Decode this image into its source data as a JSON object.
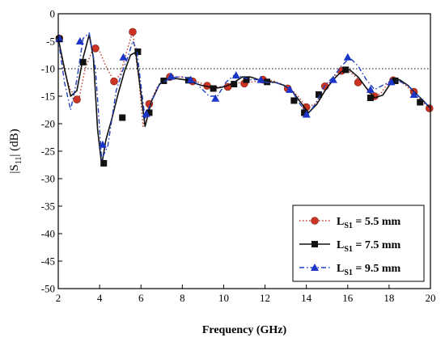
{
  "chart_data": {
    "type": "line",
    "title": "",
    "xlabel": "Frequency (GHz)",
    "ylabel_prefix": "|S",
    "ylabel_sub": "11",
    "ylabel_suffix": "| (dB)",
    "xlim": [
      2,
      20
    ],
    "ylim": [
      -50,
      0
    ],
    "xticks": [
      2,
      4,
      6,
      8,
      10,
      12,
      14,
      16,
      18,
      20
    ],
    "yticks": [
      0,
      -5,
      -10,
      -15,
      -20,
      -25,
      -30,
      -35,
      -40,
      -45,
      -50
    ],
    "reference_line": {
      "y": -10,
      "style": "dotted"
    },
    "legend_position": "bottom-right",
    "series": [
      {
        "label_main": "L",
        "label_sub": "S1",
        "label_rest": " = 5.5 mm",
        "color": "#c0392b",
        "marker_color": "#cc3322",
        "marker": "circle",
        "dash": "dot",
        "x": [
          2.0,
          2.3,
          2.6,
          3.0,
          3.3,
          3.7,
          4.0,
          4.3,
          4.7,
          5.0,
          5.3,
          5.6,
          5.9,
          6.1,
          6.4,
          6.8,
          7.2,
          7.6,
          8.0,
          8.4,
          8.8,
          9.2,
          9.6,
          10.0,
          10.4,
          10.8,
          11.2,
          11.6,
          12.0,
          12.4,
          12.8,
          13.2,
          13.6,
          14.0,
          14.4,
          14.8,
          15.2,
          15.6,
          16.0,
          16.4,
          16.8,
          17.2,
          17.6,
          18.0,
          18.4,
          18.8,
          19.2,
          19.6,
          20.0
        ],
        "y": [
          -4.5,
          -10.5,
          -14.0,
          -15.5,
          -10.0,
          -6.2,
          -6.8,
          -9.5,
          -12.3,
          -11.0,
          -7.0,
          -3.3,
          -12.0,
          -20.5,
          -16.5,
          -13.2,
          -12.0,
          -11.5,
          -11.5,
          -12.0,
          -12.5,
          -13.0,
          -13.3,
          -13.3,
          -13.0,
          -12.5,
          -12.5,
          -12.3,
          -12.0,
          -12.2,
          -12.8,
          -13.5,
          -15.0,
          -17.0,
          -16.5,
          -14.5,
          -12.0,
          -10.5,
          -10.3,
          -11.5,
          -13.0,
          -15.3,
          -14.5,
          -12.3,
          -12.0,
          -13.0,
          -14.5,
          -16.0,
          -17.2
        ],
        "markers_x": [
          2.05,
          2.9,
          3.8,
          4.7,
          5.6,
          6.4,
          7.4,
          8.5,
          9.2,
          10.2,
          11.0,
          11.9,
          13.1,
          14.0,
          14.9,
          15.7,
          16.5,
          17.3,
          18.2,
          19.2,
          19.95
        ],
        "markers_y": [
          -4.5,
          -15.6,
          -6.3,
          -12.3,
          -3.3,
          -16.4,
          -11.5,
          -12.3,
          -13.1,
          -13.3,
          -12.7,
          -12.0,
          -13.6,
          -17.0,
          -13.2,
          -10.4,
          -12.5,
          -15.0,
          -12.1,
          -14.2,
          -17.2
        ]
      },
      {
        "label_main": "L",
        "label_sub": "S1",
        "label_rest": " = 7.5 mm",
        "color": "#111111",
        "marker_color": "#111111",
        "marker": "square",
        "dash": "solid",
        "x": [
          2.0,
          2.3,
          2.6,
          2.9,
          3.2,
          3.5,
          3.7,
          3.9,
          4.1,
          4.3,
          4.6,
          4.9,
          5.2,
          5.5,
          5.75,
          6.0,
          6.2,
          6.5,
          6.9,
          7.3,
          7.7,
          8.1,
          8.5,
          8.9,
          9.3,
          9.7,
          10.1,
          10.5,
          10.9,
          11.3,
          11.7,
          12.1,
          12.5,
          12.9,
          13.3,
          13.7,
          14.1,
          14.5,
          14.9,
          15.3,
          15.7,
          16.1,
          16.5,
          16.9,
          17.3,
          17.7,
          18.1,
          18.5,
          18.9,
          19.3,
          19.7,
          20.0
        ],
        "y": [
          -4.5,
          -10.0,
          -15.0,
          -14.0,
          -8.0,
          -3.8,
          -8.0,
          -21.0,
          -27.5,
          -23.0,
          -19.0,
          -14.5,
          -10.5,
          -7.5,
          -7.0,
          -14.5,
          -20.5,
          -16.0,
          -12.8,
          -12.0,
          -11.8,
          -12.0,
          -12.5,
          -13.0,
          -13.3,
          -13.5,
          -13.2,
          -12.5,
          -11.5,
          -11.5,
          -12.0,
          -12.3,
          -12.5,
          -13.0,
          -14.0,
          -16.0,
          -18.0,
          -16.5,
          -14.0,
          -12.0,
          -10.5,
          -10.2,
          -11.5,
          -13.5,
          -15.3,
          -14.8,
          -12.5,
          -12.0,
          -13.0,
          -14.5,
          -16.0,
          -17.2
        ],
        "markers_x": [
          2.05,
          3.2,
          4.2,
          5.1,
          5.85,
          6.4,
          7.1,
          8.3,
          9.5,
          10.5,
          11.1,
          12.1,
          13.4,
          13.9,
          14.6,
          15.9,
          17.1,
          18.3,
          19.5
        ],
        "markers_y": [
          -4.6,
          -8.8,
          -27.2,
          -18.9,
          -6.9,
          -18.0,
          -12.2,
          -12.1,
          -13.6,
          -12.8,
          -12.0,
          -12.4,
          -15.8,
          -18.0,
          -14.7,
          -10.2,
          -15.3,
          -12.2,
          -16.1
        ]
      },
      {
        "label_main": "L",
        "label_sub": "S1",
        "label_rest": " = 9.5 mm",
        "color": "#1f3fbf",
        "marker_color": "#1a35c8",
        "marker": "triangle",
        "dash": "dashdot",
        "x": [
          2.0,
          2.3,
          2.6,
          2.9,
          3.2,
          3.5,
          3.8,
          4.1,
          4.4,
          4.8,
          5.1,
          5.4,
          5.6,
          5.8,
          6.0,
          6.2,
          6.5,
          6.9,
          7.3,
          7.7,
          8.1,
          8.5,
          8.9,
          9.3,
          9.7,
          10.1,
          10.5,
          10.9,
          11.3,
          11.7,
          12.1,
          12.5,
          12.9,
          13.3,
          13.7,
          14.1,
          14.5,
          14.9,
          15.3,
          15.7,
          16.1,
          16.5,
          16.9,
          17.3,
          17.7,
          18.1,
          18.5,
          18.9,
          19.3,
          19.7,
          20.0
        ],
        "y": [
          -4.5,
          -12.5,
          -17.5,
          -12.0,
          -4.5,
          -3.5,
          -10.0,
          -26.5,
          -24.0,
          -14.0,
          -10.5,
          -7.5,
          -5.0,
          -6.5,
          -13.0,
          -19.0,
          -16.0,
          -12.8,
          -12.0,
          -11.5,
          -11.5,
          -12.0,
          -13.5,
          -15.0,
          -15.0,
          -12.5,
          -11.2,
          -11.5,
          -12.0,
          -12.0,
          -12.5,
          -12.5,
          -13.0,
          -14.0,
          -16.5,
          -18.3,
          -16.0,
          -13.0,
          -11.5,
          -9.5,
          -8.0,
          -9.5,
          -12.0,
          -13.8,
          -13.0,
          -12.3,
          -12.3,
          -13.0,
          -14.5,
          -16.0,
          -17.2
        ],
        "markers_x": [
          2.05,
          3.05,
          4.15,
          5.15,
          6.25,
          7.45,
          8.4,
          9.6,
          10.6,
          11.8,
          13.2,
          14.0,
          15.3,
          16.0,
          17.1,
          18.1,
          19.2
        ],
        "markers_y": [
          -4.5,
          -5.0,
          -23.8,
          -7.9,
          -18.2,
          -11.4,
          -12.0,
          -15.4,
          -11.2,
          -12.0,
          -13.8,
          -18.3,
          -12.0,
          -7.9,
          -13.8,
          -12.4,
          -14.7
        ]
      }
    ]
  }
}
